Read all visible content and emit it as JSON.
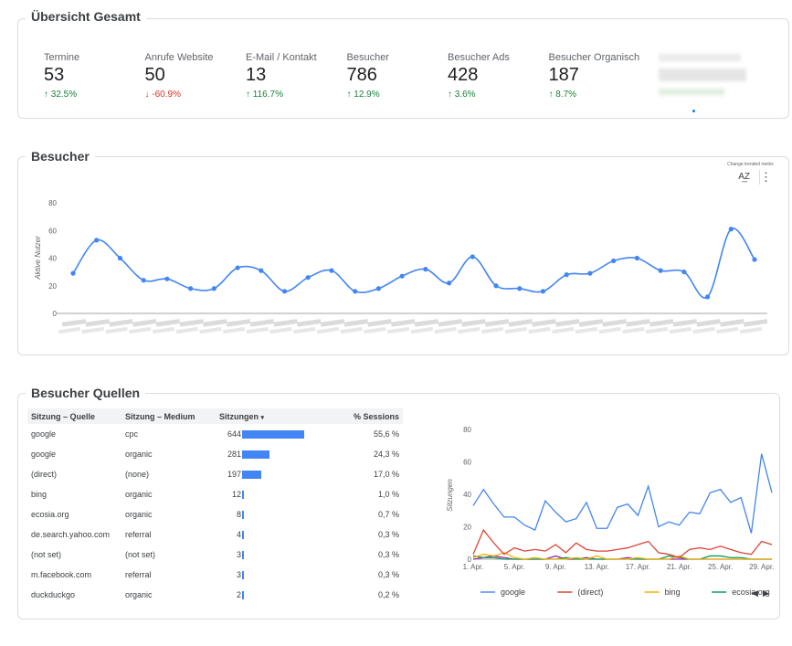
{
  "overview": {
    "title": "Übersicht Gesamt",
    "kpis": [
      {
        "label": "Termine",
        "value": "53",
        "change": "32.5%",
        "dir": "up"
      },
      {
        "label": "Anrufe Website",
        "value": "50",
        "change": "-60.9%",
        "dir": "down"
      },
      {
        "label": "E-Mail / Kontakt",
        "value": "13",
        "change": "116.7%",
        "dir": "up"
      },
      {
        "label": "Besucher",
        "value": "786",
        "change": "12.9%",
        "dir": "up"
      },
      {
        "label": "Besucher Ads",
        "value": "428",
        "change": "3.6%",
        "dir": "up"
      },
      {
        "label": "Besucher Organisch",
        "value": "187",
        "change": "8.7%",
        "dir": "up"
      }
    ]
  },
  "visitors": {
    "title": "Besucher",
    "change_metric_label": "Change trended metric",
    "chart_data": {
      "type": "line",
      "ylabel": "Aktive Nutzer",
      "ylim": [
        0,
        80
      ],
      "yticks": [
        0,
        20,
        40,
        60,
        80
      ],
      "series": [
        {
          "values": [
            29,
            53,
            40,
            24,
            25,
            18,
            18,
            33,
            31,
            16,
            26,
            31,
            16,
            18,
            27,
            32,
            22,
            41,
            20,
            18,
            16,
            28,
            29,
            38,
            40,
            31,
            30,
            12,
            61,
            39
          ]
        }
      ]
    }
  },
  "sources": {
    "title": "Besucher Quellen",
    "columns": [
      "Sitzung – Quelle",
      "Sitzung – Medium",
      "Sitzungen",
      "% Sessions"
    ],
    "sort_icon": "▾",
    "rows": [
      {
        "source": "google",
        "medium": "cpc",
        "sessions": 644,
        "pct": "55,6 %"
      },
      {
        "source": "google",
        "medium": "organic",
        "sessions": 281,
        "pct": "24,3 %"
      },
      {
        "source": "(direct)",
        "medium": "(none)",
        "sessions": 197,
        "pct": "17,0 %"
      },
      {
        "source": "bing",
        "medium": "organic",
        "sessions": 12,
        "pct": "1,0 %"
      },
      {
        "source": "ecosia.org",
        "medium": "organic",
        "sessions": 8,
        "pct": "0,7 %"
      },
      {
        "source": "de.search.yahoo.com",
        "medium": "referral",
        "sessions": 4,
        "pct": "0,3 %"
      },
      {
        "source": "(not set)",
        "medium": "(not set)",
        "sessions": 3,
        "pct": "0,3 %"
      },
      {
        "source": "m.facebook.com",
        "medium": "referral",
        "sessions": 3,
        "pct": "0,3 %"
      },
      {
        "source": "duckduckgo",
        "medium": "organic",
        "sessions": 2,
        "pct": "0,2 %"
      }
    ],
    "chart_data": {
      "type": "line",
      "ylabel": "Sitzungen",
      "ylim": [
        0,
        80
      ],
      "yticks": [
        0,
        20,
        40,
        60,
        80
      ],
      "x_tick_labels": [
        "1. Apr.",
        "5. Apr.",
        "9. Apr.",
        "13. Apr.",
        "17. Apr.",
        "21. Apr.",
        "25. Apr.",
        "29. Apr."
      ],
      "series": [
        {
          "name": "google",
          "color": "#4285f4",
          "values": [
            33,
            43,
            34,
            26,
            26,
            21,
            18,
            36,
            29,
            23,
            25,
            35,
            19,
            19,
            32,
            34,
            27,
            45,
            20,
            23,
            21,
            29,
            28,
            41,
            43,
            35,
            38,
            16,
            65,
            41
          ]
        },
        {
          "name": "(direct)",
          "color": "#db4437",
          "values": [
            3,
            18,
            10,
            3,
            7,
            5,
            6,
            5,
            9,
            4,
            10,
            6,
            5,
            5,
            6,
            7,
            9,
            11,
            4,
            3,
            1,
            6,
            7,
            6,
            8,
            6,
            4,
            3,
            11,
            9
          ]
        },
        {
          "name": "bing",
          "color": "#f4b400",
          "values": [
            1,
            3,
            2,
            4,
            1,
            0,
            1,
            0,
            0,
            0,
            1,
            0,
            2,
            0,
            0,
            0,
            1,
            0,
            0,
            0,
            2,
            0,
            0,
            0,
            0,
            0,
            0,
            0,
            0,
            0
          ]
        },
        {
          "name": "ecosia.org",
          "color": "#0f9d58",
          "values": [
            2,
            1,
            1,
            0,
            0,
            0,
            0,
            0,
            0,
            1,
            0,
            0,
            0,
            0,
            0,
            0,
            0,
            0,
            0,
            2,
            1,
            0,
            0,
            2,
            2,
            1,
            1,
            0,
            0,
            0
          ]
        },
        {
          "name": "",
          "color": "#9c27b0",
          "values": [
            0,
            1,
            2,
            1,
            0,
            0,
            0,
            0,
            2,
            0,
            0,
            1,
            0,
            0,
            0,
            1,
            0,
            0,
            0,
            0,
            0,
            0,
            0,
            0,
            0,
            0,
            0,
            0,
            0,
            0
          ]
        }
      ]
    }
  }
}
